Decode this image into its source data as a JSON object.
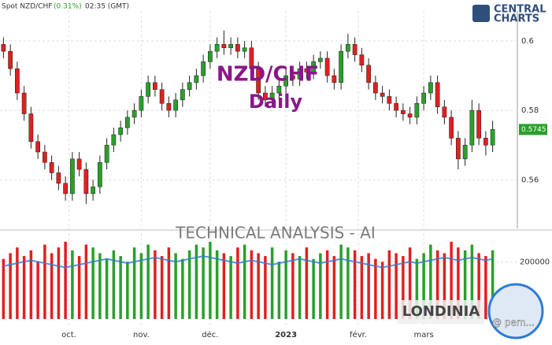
{
  "header": {
    "instrument": "Spot NZD/CHF",
    "change": "(0.31%)",
    "time": "02:35 (GMT)"
  },
  "logo": {
    "line1": "CENTRAL",
    "line2": "CHARTS"
  },
  "watermark": {
    "title": "NZD/CHF",
    "timeframe": "Daily",
    "banner": "TECHNICAL  ANALYSIS - AI",
    "brand": "LONDINIA",
    "handle": "@ pem..."
  },
  "chart_data": {
    "type": "candlestick",
    "open": [
      0.599,
      0.597,
      0.592,
      0.585,
      0.579,
      0.571,
      0.568,
      0.565,
      0.562,
      0.559,
      0.556,
      0.566,
      0.563,
      0.556,
      0.558,
      0.565,
      0.57,
      0.573,
      0.575,
      0.578,
      0.58,
      0.584,
      0.588,
      0.586,
      0.582,
      0.58,
      0.583,
      0.586,
      0.588,
      0.59,
      0.594,
      0.597,
      0.599,
      0.598,
      0.599,
      0.597,
      0.598,
      0.592,
      0.585,
      0.583,
      0.585,
      0.587,
      0.59,
      0.589,
      0.592,
      0.591,
      0.594,
      0.595,
      0.59,
      0.588,
      0.597,
      0.599,
      0.596,
      0.593,
      0.588,
      0.585,
      0.584,
      0.582,
      0.58,
      0.579,
      0.578,
      0.582,
      0.585,
      0.588,
      0.581,
      0.578,
      0.572,
      0.566,
      0.57,
      0.58,
      0.572,
      0.57
    ],
    "high": [
      0.601,
      0.599,
      0.594,
      0.587,
      0.581,
      0.573,
      0.57,
      0.567,
      0.564,
      0.561,
      0.568,
      0.568,
      0.565,
      0.56,
      0.567,
      0.572,
      0.575,
      0.577,
      0.58,
      0.582,
      0.586,
      0.59,
      0.59,
      0.588,
      0.584,
      0.585,
      0.588,
      0.59,
      0.592,
      0.596,
      0.599,
      0.601,
      0.603,
      0.601,
      0.601,
      0.6,
      0.6,
      0.594,
      0.587,
      0.587,
      0.589,
      0.592,
      0.592,
      0.594,
      0.594,
      0.596,
      0.597,
      0.597,
      0.592,
      0.599,
      0.602,
      0.601,
      0.598,
      0.595,
      0.59,
      0.587,
      0.586,
      0.584,
      0.582,
      0.581,
      0.584,
      0.587,
      0.59,
      0.59,
      0.583,
      0.58,
      0.574,
      0.572,
      0.583,
      0.582,
      0.574,
      0.577
    ],
    "low": [
      0.595,
      0.59,
      0.583,
      0.577,
      0.569,
      0.566,
      0.563,
      0.56,
      0.557,
      0.554,
      0.554,
      0.561,
      0.553,
      0.554,
      0.556,
      0.563,
      0.568,
      0.571,
      0.573,
      0.576,
      0.578,
      0.582,
      0.584,
      0.58,
      0.578,
      0.578,
      0.581,
      0.584,
      0.586,
      0.588,
      0.592,
      0.595,
      0.596,
      0.596,
      0.595,
      0.595,
      0.59,
      0.583,
      0.581,
      0.581,
      0.583,
      0.585,
      0.587,
      0.587,
      0.589,
      0.589,
      0.592,
      0.588,
      0.586,
      0.586,
      0.595,
      0.594,
      0.591,
      0.586,
      0.583,
      0.582,
      0.58,
      0.578,
      0.577,
      0.576,
      0.576,
      0.58,
      0.583,
      0.579,
      0.576,
      0.57,
      0.563,
      0.564,
      0.568,
      0.57,
      0.567,
      0.568
    ],
    "close": [
      0.597,
      0.592,
      0.585,
      0.579,
      0.571,
      0.568,
      0.565,
      0.562,
      0.559,
      0.556,
      0.566,
      0.563,
      0.556,
      0.558,
      0.565,
      0.57,
      0.573,
      0.575,
      0.578,
      0.58,
      0.584,
      0.588,
      0.586,
      0.582,
      0.58,
      0.583,
      0.586,
      0.588,
      0.59,
      0.594,
      0.597,
      0.599,
      0.598,
      0.599,
      0.597,
      0.598,
      0.592,
      0.585,
      0.583,
      0.585,
      0.587,
      0.59,
      0.589,
      0.592,
      0.591,
      0.594,
      0.595,
      0.59,
      0.588,
      0.597,
      0.599,
      0.596,
      0.593,
      0.588,
      0.585,
      0.584,
      0.582,
      0.58,
      0.579,
      0.578,
      0.582,
      0.585,
      0.588,
      0.581,
      0.578,
      0.572,
      0.566,
      0.57,
      0.58,
      0.572,
      0.57,
      0.5745
    ],
    "up_color": "#2aa02a",
    "down_color": "#e02020",
    "ylim": [
      0.546,
      0.6086
    ],
    "yticks": [
      0.56,
      0.58,
      0.6
    ],
    "xlim": [
      0,
      72
    ],
    "xticks": [
      {
        "value": 9.5,
        "label": "oct."
      },
      {
        "value": 20,
        "label": "nov."
      },
      {
        "value": 30,
        "label": "déc."
      },
      {
        "value": 41,
        "label": "2023"
      },
      {
        "value": 51.5,
        "label": "févr."
      },
      {
        "value": 61,
        "label": "mars"
      }
    ],
    "last_price": 0.5745,
    "grid": true,
    "volume": [
      210000,
      230000,
      250000,
      220000,
      240000,
      200000,
      260000,
      230000,
      250000,
      270000,
      240000,
      220000,
      260000,
      250000,
      230000,
      210000,
      240000,
      220000,
      200000,
      250000,
      230000,
      260000,
      240000,
      220000,
      250000,
      230000,
      210000,
      240000,
      260000,
      250000,
      270000,
      240000,
      230000,
      220000,
      250000,
      260000,
      240000,
      230000,
      220000,
      250000,
      200000,
      240000,
      230000,
      220000,
      250000,
      210000,
      230000,
      240000,
      220000,
      260000,
      250000,
      240000,
      220000,
      230000,
      210000,
      200000,
      240000,
      230000,
      220000,
      250000,
      210000,
      230000,
      260000,
      240000,
      230000,
      270000,
      250000,
      240000,
      260000,
      230000,
      220000,
      240000
    ],
    "volume_ma": [
      185000,
      190000,
      195000,
      200000,
      205000,
      200000,
      195000,
      190000,
      185000,
      180000,
      185000,
      190000,
      195000,
      200000,
      205000,
      210000,
      205000,
      200000,
      195000,
      200000,
      205000,
      210000,
      215000,
      210000,
      205000,
      200000,
      205000,
      210000,
      215000,
      220000,
      215000,
      210000,
      205000,
      200000,
      195000,
      200000,
      205000,
      200000,
      195000,
      190000,
      195000,
      200000,
      205000,
      210000,
      205000,
      200000,
      195000,
      200000,
      205000,
      210000,
      205000,
      200000,
      195000,
      190000,
      185000,
      180000,
      185000,
      190000,
      195000,
      200000,
      195000,
      200000,
      205000,
      210000,
      215000,
      210000,
      205000,
      210000,
      215000,
      210000,
      205000,
      210000
    ],
    "volume_color": "#2c7bd6",
    "volume_ylim": [
      0,
      300000
    ],
    "volume_yticks": [
      200000
    ]
  }
}
